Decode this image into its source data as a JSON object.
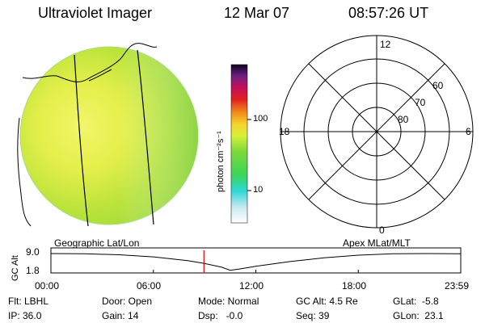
{
  "header": {
    "instrument": "Ultraviolet Imager",
    "date": "12 Mar 07",
    "time": "08:57:26 UT"
  },
  "colorbar": {
    "label": "photon cm⁻²s⁻¹",
    "ticks": [
      "100",
      "10"
    ],
    "scale": "log"
  },
  "polar": {
    "lat_labels": [
      "60",
      "70",
      "80"
    ],
    "mlt_labels": {
      "top": "12",
      "left": "18",
      "right": "6",
      "bottom": "0"
    }
  },
  "panels": {
    "left_caption": "Geographic Lat/Lon",
    "right_caption": "Apex MLat/MLT"
  },
  "chart_data": {
    "type": "line",
    "ylabel": "GC Alt",
    "ytick_labels": [
      "9.0",
      "1.8"
    ],
    "ylim": [
      1.8,
      9.0
    ],
    "xtick_labels": [
      "00:00",
      "06:00",
      "12:00",
      "18:00",
      "23:59"
    ],
    "xlim_hours": [
      0,
      24
    ],
    "current_time_hours": 8.96,
    "series": [
      {
        "x": [
          0,
          2,
          4,
          6,
          8,
          9,
          10,
          10.5,
          11,
          12,
          14,
          16,
          18,
          20,
          22,
          23.98
        ],
        "y": [
          9.0,
          8.9,
          8.5,
          7.6,
          6.0,
          4.8,
          3.2,
          1.9,
          2.4,
          3.6,
          5.6,
          7.2,
          8.3,
          8.9,
          9.0,
          8.9
        ]
      }
    ],
    "colors": {
      "marker": "#e00000",
      "line": "#000000"
    }
  },
  "status": {
    "flt": "Flt: LBHL",
    "ip": "IP: 36.0",
    "door": "Door: Open",
    "gain": "Gain: 14",
    "mode": "Mode: Normal",
    "dsp": "Dsp:   -0.0",
    "gcalt": "GC Alt: 4.5 Re",
    "seq": "Seq: 39",
    "glat": "GLat:  -5.8",
    "glon": "GLon:  23.1"
  }
}
